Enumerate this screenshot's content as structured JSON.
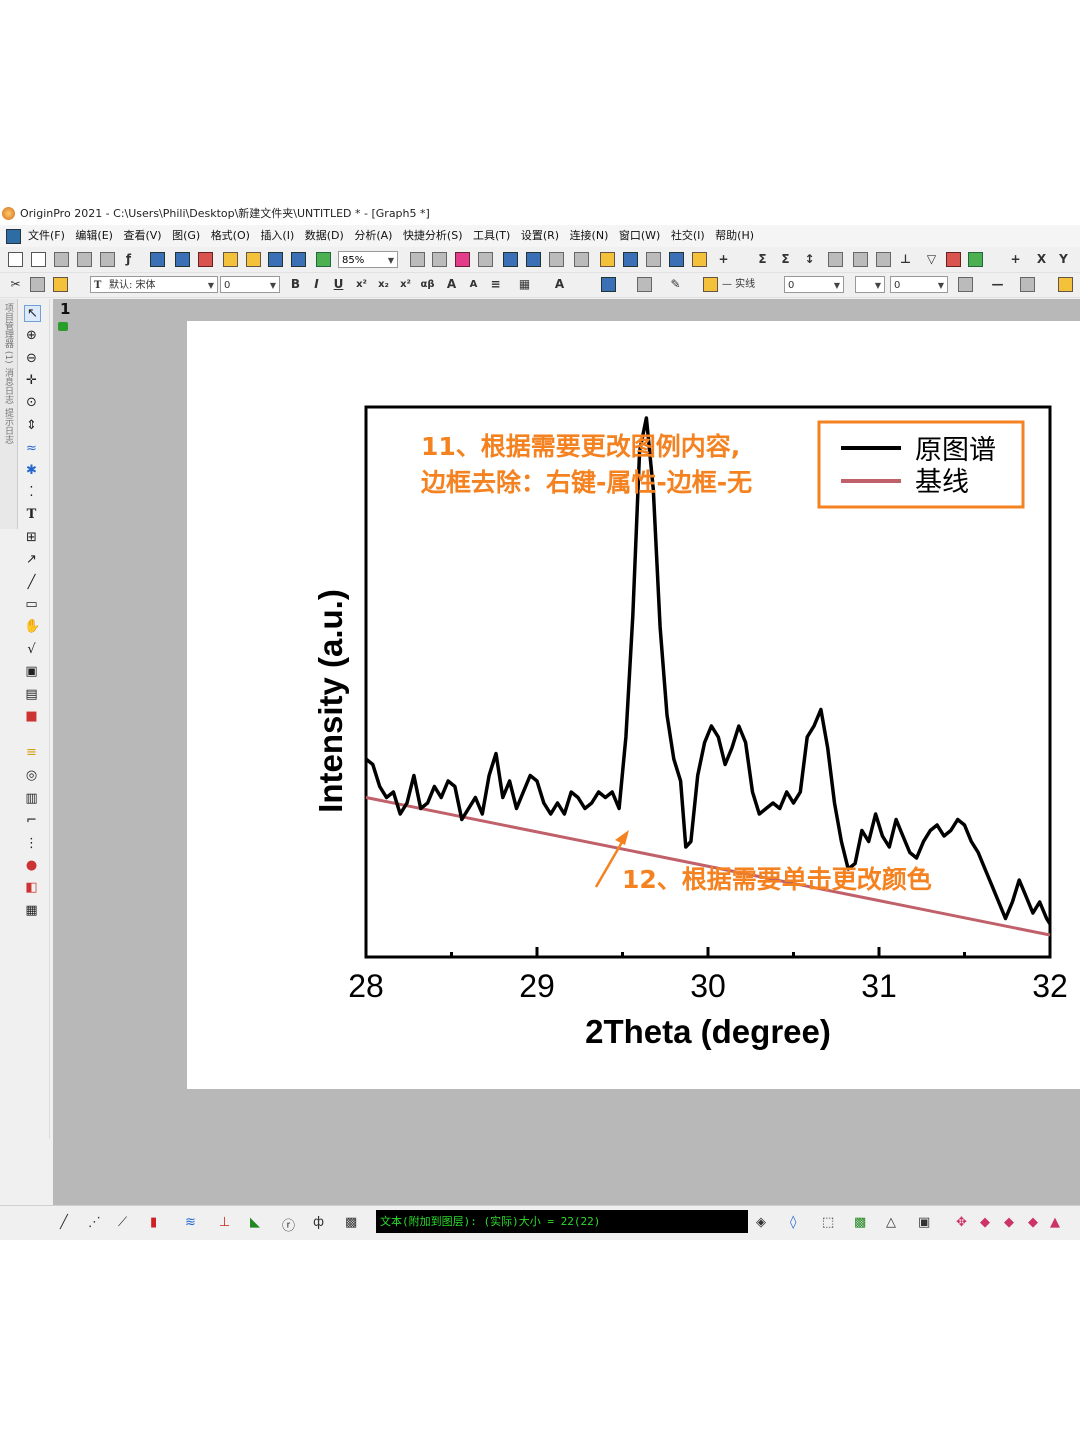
{
  "window": {
    "title": "OriginPro 2021 - C:\\Users\\Phili\\Desktop\\新建文件夹\\UNTITLED * - [Graph5 *]"
  },
  "menu": [
    "文件(F)",
    "编辑(E)",
    "查看(V)",
    "图(G)",
    "格式(O)",
    "插入(I)",
    "数据(D)",
    "分析(A)",
    "快捷分析(S)",
    "工具(T)",
    "设置(R)",
    "连接(N)",
    "窗口(W)",
    "社交(I)",
    "帮助(H)"
  ],
  "toolbar": {
    "zoom_value": "85%",
    "font_name": "默认: 宋体",
    "font_size": "0",
    "line_style": "— 实线",
    "line_width": "0",
    "fill_value": "0"
  },
  "side_panels": [
    "项目管理器 (1)",
    "消息日志",
    "提示日志"
  ],
  "layer": {
    "number": "1"
  },
  "graph": {
    "ylabel": "Intensity (a.u.)",
    "xlabel": "2Theta (degree)",
    "annotation_11_line1": "11、根据需要更改图例内容,",
    "annotation_11_line2": "边框去除：右键-属性-边框-无",
    "annotation_12": "12、根据需要单击更改颜色",
    "legend": [
      "原图谱",
      "基线"
    ],
    "colors": {
      "data": "#000000",
      "baseline": "#c0606a",
      "annotation": "#f58220"
    }
  },
  "chart_data": {
    "type": "line",
    "xlim": [
      28,
      32
    ],
    "ticks": [
      "28",
      "29",
      "30",
      "31",
      "32"
    ],
    "xlabel": "2Theta (degree)",
    "ylabel": "Intensity (a.u.)",
    "legend_position": "top-right",
    "series": [
      {
        "name": "原图谱",
        "x": [
          28.0,
          28.04,
          28.08,
          28.12,
          28.16,
          28.2,
          28.24,
          28.28,
          28.32,
          28.36,
          28.4,
          28.44,
          28.48,
          28.52,
          28.56,
          28.6,
          28.64,
          28.68,
          28.72,
          28.76,
          28.8,
          28.84,
          28.88,
          28.92,
          28.96,
          29.0,
          29.04,
          29.08,
          29.12,
          29.16,
          29.2,
          29.24,
          29.28,
          29.32,
          29.36,
          29.4,
          29.44,
          29.48,
          29.52,
          29.56,
          29.6,
          29.64,
          29.68,
          29.72,
          29.76,
          29.8,
          29.84,
          29.87,
          29.9,
          29.94,
          29.98,
          30.02,
          30.06,
          30.1,
          30.14,
          30.18,
          30.22,
          30.26,
          30.3,
          30.34,
          30.38,
          30.42,
          30.46,
          30.5,
          30.54,
          30.58,
          30.62,
          30.66,
          30.7,
          30.74,
          30.78,
          30.82,
          30.86,
          30.9,
          30.94,
          30.98,
          31.02,
          31.06,
          31.1,
          31.14,
          31.18,
          31.22,
          31.26,
          31.3,
          31.34,
          31.38,
          31.42,
          31.46,
          31.5,
          31.54,
          31.58,
          31.62,
          31.66,
          31.7,
          31.74,
          31.78,
          31.82,
          31.86,
          31.9,
          31.94,
          31.98,
          32.0
        ],
        "y": [
          0.36,
          0.35,
          0.31,
          0.29,
          0.3,
          0.26,
          0.28,
          0.33,
          0.27,
          0.28,
          0.31,
          0.29,
          0.32,
          0.31,
          0.25,
          0.27,
          0.29,
          0.26,
          0.33,
          0.37,
          0.29,
          0.32,
          0.27,
          0.3,
          0.33,
          0.32,
          0.28,
          0.26,
          0.28,
          0.26,
          0.3,
          0.29,
          0.27,
          0.28,
          0.3,
          0.29,
          0.3,
          0.27,
          0.4,
          0.62,
          0.92,
          0.98,
          0.85,
          0.6,
          0.44,
          0.36,
          0.32,
          0.2,
          0.21,
          0.33,
          0.39,
          0.42,
          0.4,
          0.35,
          0.38,
          0.42,
          0.39,
          0.3,
          0.26,
          0.27,
          0.28,
          0.27,
          0.3,
          0.28,
          0.3,
          0.4,
          0.42,
          0.45,
          0.38,
          0.28,
          0.21,
          0.16,
          0.17,
          0.23,
          0.21,
          0.26,
          0.22,
          0.2,
          0.25,
          0.22,
          0.19,
          0.18,
          0.21,
          0.23,
          0.24,
          0.22,
          0.23,
          0.25,
          0.24,
          0.21,
          0.19,
          0.16,
          0.13,
          0.1,
          0.07,
          0.1,
          0.14,
          0.11,
          0.08,
          0.1,
          0.07,
          0.06
        ]
      },
      {
        "name": "基线",
        "x": [
          28,
          32
        ],
        "y": [
          0.29,
          0.04
        ]
      }
    ]
  }
}
